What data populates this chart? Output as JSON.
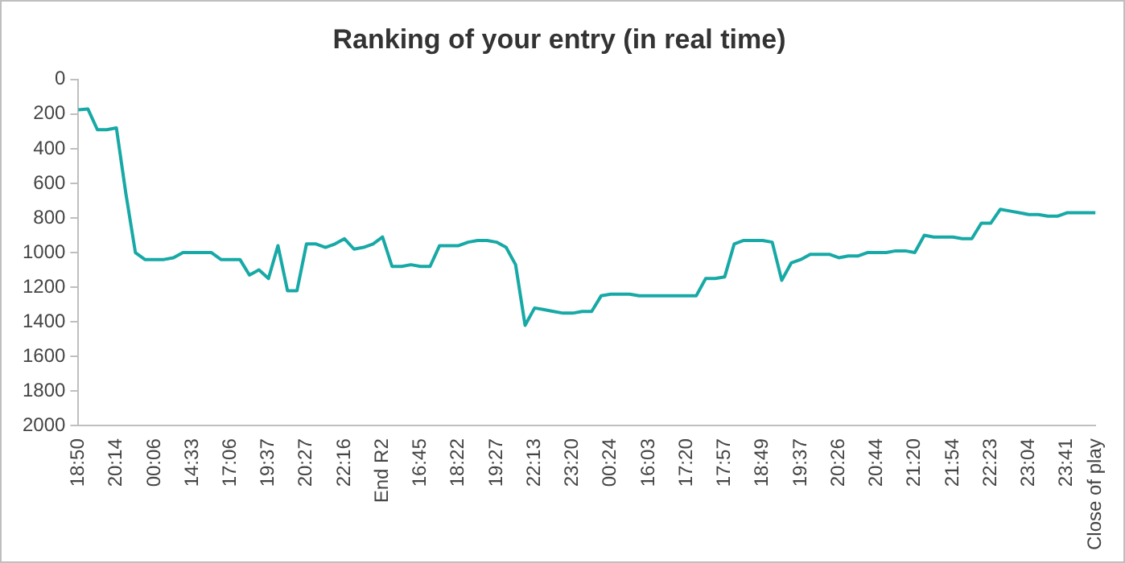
{
  "chart_data": {
    "type": "line",
    "title": "Ranking of your entry (in real time)",
    "categories": [
      "18:50",
      null,
      null,
      null,
      "20:14",
      null,
      null,
      null,
      "00:06",
      null,
      null,
      null,
      "14:33",
      null,
      null,
      null,
      "17:06",
      null,
      null,
      null,
      "19:37",
      null,
      null,
      null,
      "20:27",
      null,
      null,
      null,
      "22:16",
      null,
      null,
      null,
      "End R2",
      null,
      null,
      null,
      "16:45",
      null,
      null,
      null,
      "18:22",
      null,
      null,
      null,
      "19:27",
      null,
      null,
      null,
      "22:13",
      null,
      null,
      null,
      "23:20",
      null,
      null,
      null,
      "00:24",
      null,
      null,
      null,
      "16:03",
      null,
      null,
      null,
      "17:20",
      null,
      null,
      null,
      "17:57",
      null,
      null,
      null,
      "18:49",
      null,
      null,
      null,
      "19:37",
      null,
      null,
      null,
      "20:26",
      null,
      null,
      null,
      "20:44",
      null,
      null,
      null,
      "21:20",
      null,
      null,
      null,
      "21:54",
      null,
      null,
      null,
      "22:23",
      null,
      null,
      null,
      "23:04",
      null,
      null,
      null,
      "23:41",
      null,
      null,
      "Close of play"
    ],
    "series": [
      {
        "color": "#17a9a6",
        "values": [
          175,
          170,
          290,
          290,
          280,
          660,
          1000,
          1040,
          1040,
          1040,
          1030,
          1000,
          1000,
          1000,
          1000,
          1040,
          1040,
          1040,
          1130,
          1100,
          1150,
          960,
          1220,
          1220,
          950,
          950,
          970,
          950,
          920,
          980,
          970,
          950,
          910,
          1080,
          1080,
          1070,
          1080,
          1080,
          960,
          960,
          960,
          940,
          930,
          930,
          940,
          970,
          1070,
          1420,
          1320,
          1330,
          1340,
          1350,
          1350,
          1340,
          1340,
          1250,
          1240,
          1240,
          1240,
          1250,
          1250,
          1250,
          1250,
          1250,
          1250,
          1250,
          1150,
          1150,
          1140,
          950,
          930,
          930,
          930,
          940,
          1160,
          1060,
          1040,
          1010,
          1010,
          1010,
          1030,
          1020,
          1020,
          1000,
          1000,
          1000,
          990,
          990,
          1000,
          900,
          910,
          910,
          910,
          920,
          920,
          830,
          830,
          750,
          760,
          770,
          780,
          780,
          790,
          790,
          770,
          770,
          770,
          770
        ]
      }
    ],
    "ylim": [
      2000,
      0
    ],
    "yticks": [
      0,
      200,
      400,
      600,
      800,
      1000,
      1200,
      1400,
      1600,
      1800,
      2000
    ],
    "grid": false,
    "legend": false,
    "marker": "none",
    "line_style": "solid"
  }
}
